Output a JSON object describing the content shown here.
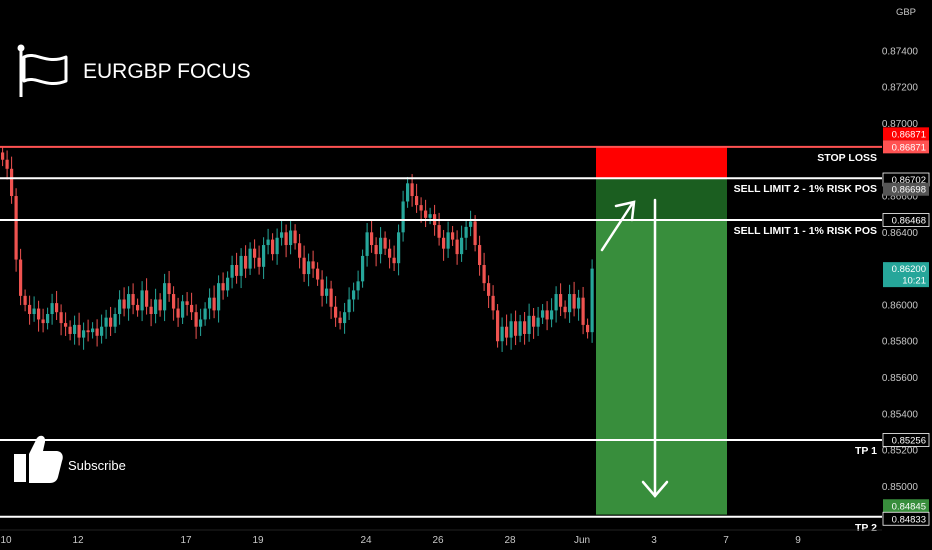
{
  "header": {
    "title": "EURGBP FOCUS",
    "currency": "GBP"
  },
  "subscribe": {
    "label": "Subscribe"
  },
  "levels": {
    "stop_loss": {
      "label": "STOP LOSS",
      "price": 0.86871,
      "tag": "0.86871",
      "tag2": "0.86871",
      "tag3": "0.86702"
    },
    "sell_limit_2": {
      "label": "SELL LIMIT 2 - 1% RISK POS",
      "price": 0.86698,
      "tag": "0.86698"
    },
    "sell_limit_1": {
      "label": "SELL LIMIT 1 - 1% RISK POS",
      "price": 0.86468,
      "tag": "0.86468"
    },
    "tp1": {
      "label": "TP 1",
      "price": 0.85256,
      "tag": "0.85256"
    },
    "tp2": {
      "label": "TP 2",
      "price": 0.84833,
      "tag": "0.84833",
      "tag_green": "0.84845"
    }
  },
  "current_price": {
    "value": 0.862,
    "tag": "0.86200",
    "countdown": "10:21"
  },
  "colors": {
    "up": "#26a69a",
    "down": "#ef5350",
    "stop": "#ff0000",
    "target": "#388e3c",
    "target_dark": "#1b5e20",
    "line": "#ffffff",
    "stop_line": "#ff5252"
  },
  "chart_data": {
    "type": "candlestick",
    "ylim": [
      0.8476,
      0.8768
    ],
    "y_ticks": [
      "0.87400",
      "0.87200",
      "0.87000",
      "0.86600",
      "0.86400",
      "0.86000",
      "0.85800",
      "0.85600",
      "0.85400",
      "0.85200",
      "0.85000"
    ],
    "x_ticks": [
      "10",
      "12",
      "17",
      "19",
      "24",
      "26",
      "28",
      "Jun",
      "3",
      "7",
      "9"
    ],
    "positions": {
      "short_entry_zone": [
        0.86468,
        0.86698
      ],
      "stop_zone": [
        0.86698,
        0.86871
      ],
      "target_zone": [
        0.84845,
        0.86468
      ]
    },
    "series": [
      {
        "values": [
          0.868,
          0.8675,
          0.866,
          0.8625,
          0.8605,
          0.86,
          0.8595,
          0.8598,
          0.8592,
          0.859,
          0.8595,
          0.8601,
          0.8596,
          0.859,
          0.8588,
          0.8584,
          0.8589,
          0.8582,
          0.8586,
          0.8585,
          0.8587,
          0.8583,
          0.8588,
          0.8593,
          0.8588,
          0.8595,
          0.8603,
          0.8598,
          0.8606,
          0.86,
          0.8597,
          0.8608,
          0.8599,
          0.8595,
          0.8603,
          0.8597,
          0.8612,
          0.8606,
          0.8598,
          0.8593,
          0.8602,
          0.86,
          0.8596,
          0.8588,
          0.8592,
          0.8598,
          0.8604,
          0.8597,
          0.8612,
          0.8608,
          0.8615,
          0.8622,
          0.8616,
          0.8627,
          0.862,
          0.8631,
          0.8626,
          0.8621,
          0.8633,
          0.8636,
          0.8628,
          0.8637,
          0.864,
          0.8633,
          0.8641,
          0.8634,
          0.8626,
          0.8617,
          0.8624,
          0.862,
          0.8614,
          0.8605,
          0.8609,
          0.8599,
          0.8593,
          0.859,
          0.8596,
          0.8603,
          0.8608,
          0.8613,
          0.8627,
          0.864,
          0.8633,
          0.8628,
          0.8637,
          0.8631,
          0.8626,
          0.8623,
          0.864,
          0.8657,
          0.8667,
          0.866,
          0.8655,
          0.8652,
          0.8648,
          0.865,
          0.8644,
          0.8637,
          0.8631,
          0.864,
          0.8636,
          0.8628,
          0.8637,
          0.8643,
          0.8646,
          0.8633,
          0.8622,
          0.8612,
          0.8605,
          0.8597,
          0.858,
          0.8588,
          0.8582,
          0.8591,
          0.8583,
          0.8591,
          0.8584,
          0.8594,
          0.8588,
          0.8593,
          0.8597,
          0.8592,
          0.8597,
          0.8606,
          0.8599,
          0.8596,
          0.8606,
          0.8598,
          0.8604,
          0.8589,
          0.8585,
          0.862
        ]
      }
    ]
  }
}
